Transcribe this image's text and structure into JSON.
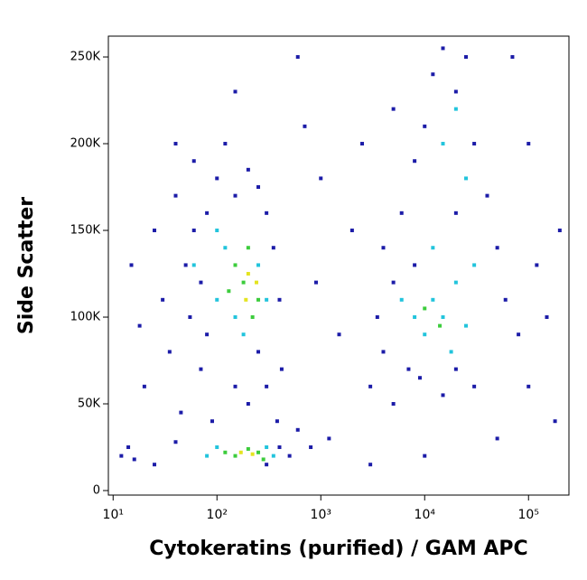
{
  "chart_data": {
    "type": "scatter",
    "xlabel": "Cytokeratins (purified) / GAM APC",
    "ylabel": "Side Scatter",
    "xscale": "log",
    "xlim": [
      9,
      245000
    ],
    "ylim": [
      -2600,
      262000
    ],
    "xticks": [
      {
        "value": 10,
        "label": "10¹"
      },
      {
        "value": 100,
        "label": "10²"
      },
      {
        "value": 1000,
        "label": "10³"
      },
      {
        "value": 10000,
        "label": "10⁴"
      },
      {
        "value": 100000,
        "label": "10⁵"
      }
    ],
    "yticks": [
      0,
      {
        "value": 50000,
        "label": "50K"
      },
      {
        "value": 100000,
        "label": "100K"
      },
      {
        "value": 150000,
        "label": "150K"
      },
      {
        "value": 200000,
        "label": "200K"
      },
      {
        "value": 250000,
        "label": "250K"
      }
    ],
    "series": [
      {
        "color": "#1c1ca8",
        "x": [
          15,
          18,
          20,
          25,
          30,
          35,
          40,
          45,
          50,
          55,
          60,
          70,
          80,
          90,
          100,
          120,
          150,
          200,
          250,
          300,
          350,
          400,
          420,
          380,
          300,
          60,
          70,
          80,
          150,
          200,
          250,
          12,
          14,
          16,
          25,
          40,
          300,
          400,
          500,
          600,
          800,
          1200,
          1500,
          900,
          2000,
          1000,
          700,
          3000,
          4000,
          5000,
          6000,
          4000,
          3500,
          5000,
          7000,
          8000,
          10000,
          12000,
          15000,
          20000,
          25000,
          30000,
          40000,
          50000,
          60000,
          80000,
          100000,
          120000,
          150000,
          20000,
          30000,
          15000,
          9000,
          5000,
          2500,
          200000,
          180000,
          50000,
          10000,
          3000,
          20000,
          8000,
          600,
          150,
          40,
          100000,
          70000
        ],
        "y": [
          130000,
          95000,
          60000,
          150000,
          110000,
          80000,
          170000,
          45000,
          130000,
          100000,
          190000,
          70000,
          160000,
          40000,
          180000,
          200000,
          170000,
          185000,
          175000,
          160000,
          140000,
          110000,
          70000,
          40000,
          60000,
          150000,
          120000,
          90000,
          60000,
          50000,
          80000,
          20000,
          25000,
          18000,
          15000,
          28000,
          15000,
          25000,
          20000,
          35000,
          25000,
          30000,
          90000,
          120000,
          150000,
          180000,
          210000,
          60000,
          80000,
          120000,
          160000,
          140000,
          100000,
          50000,
          70000,
          190000,
          210000,
          240000,
          255000,
          230000,
          250000,
          200000,
          170000,
          140000,
          110000,
          90000,
          60000,
          130000,
          100000,
          70000,
          60000,
          55000,
          65000,
          220000,
          200000,
          150000,
          40000,
          30000,
          20000,
          15000,
          160000,
          130000,
          250000,
          230000,
          200000,
          200000,
          250000
        ]
      },
      {
        "color": "#22c4dc",
        "x": [
          100,
          120,
          150,
          180,
          250,
          300,
          100,
          60,
          80,
          100,
          300,
          350,
          8000,
          10000,
          12000,
          15000,
          20000,
          25000,
          6000,
          18000,
          12000,
          25000,
          20000,
          15000,
          30000
        ],
        "y": [
          150000,
          140000,
          100000,
          90000,
          130000,
          110000,
          110000,
          130000,
          20000,
          25000,
          25000,
          20000,
          100000,
          90000,
          110000,
          100000,
          120000,
          95000,
          110000,
          80000,
          140000,
          180000,
          220000,
          200000,
          130000
        ]
      },
      {
        "color": "#3ccc3c",
        "x": [
          150,
          200,
          250,
          180,
          220,
          130,
          120,
          150,
          200,
          250,
          280,
          10000,
          14000
        ],
        "y": [
          130000,
          140000,
          110000,
          120000,
          100000,
          115000,
          22000,
          20000,
          24000,
          22000,
          18000,
          105000,
          95000
        ]
      },
      {
        "color": "#e4e420",
        "x": [
          200,
          240,
          190,
          170,
          220
        ],
        "y": [
          125000,
          120000,
          110000,
          22000,
          21000
        ]
      }
    ]
  }
}
